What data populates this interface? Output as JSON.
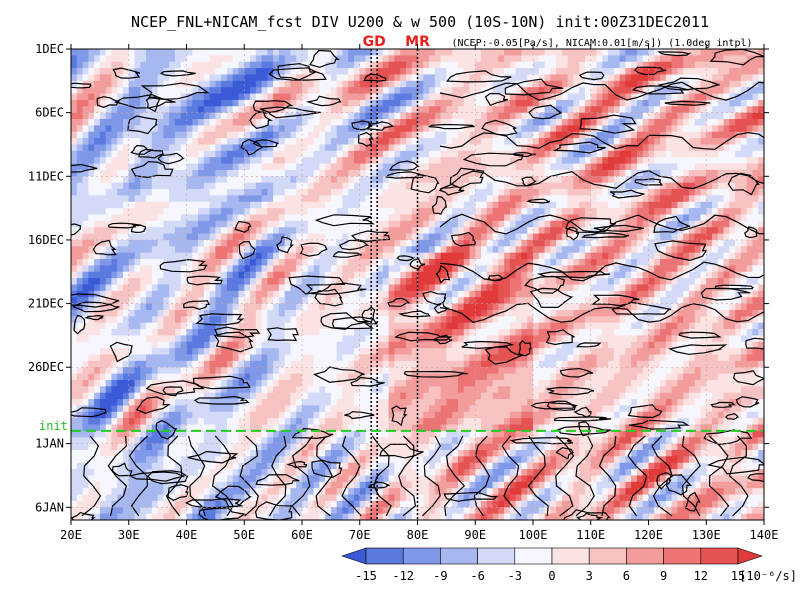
{
  "chart_data": {
    "type": "heatmap",
    "title": "NCEP_FNL+NICAM_fcst DIV U200 & w 500 (10S-10N) init:00Z31DEC2011",
    "subtitle": "(NCEP:-0.05[Pa/s], NICAM:0.01[m/s]) (1.0deg intpl)",
    "x_axis": {
      "unit": "longitude_deg_east",
      "range": [
        20,
        140
      ],
      "ticks": [
        20,
        30,
        40,
        50,
        60,
        70,
        80,
        90,
        100,
        110,
        120,
        130,
        140
      ],
      "tick_labels": [
        "20E",
        "30E",
        "40E",
        "50E",
        "60E",
        "70E",
        "80E",
        "90E",
        "100E",
        "110E",
        "120E",
        "130E",
        "140E"
      ]
    },
    "y_axis": {
      "unit": "date",
      "range": [
        "2011-12-01",
        "2012-01-07"
      ],
      "ticks": [
        "2011-12-01",
        "2011-12-06",
        "2011-12-11",
        "2011-12-16",
        "2011-12-21",
        "2011-12-26",
        "2012-01-01",
        "2012-01-06"
      ],
      "tick_labels": [
        "1DEC",
        "6DEC",
        "11DEC",
        "16DEC",
        "21DEC",
        "26DEC",
        "1JAN",
        "6JAN"
      ],
      "direction": "time increases downward"
    },
    "init_line": {
      "label": "init",
      "date": "2011-12-31",
      "color": "#22cc22"
    },
    "markers": [
      {
        "label": "GD",
        "lon": 72.5,
        "color": "#e8201c"
      },
      {
        "label": "MR",
        "lon": 80,
        "color": "#e8201c"
      }
    ],
    "colorbar": {
      "levels": [
        -15,
        -12,
        -9,
        -6,
        -3,
        0,
        3,
        6,
        9,
        12,
        15
      ],
      "level_labels": [
        "-15",
        "-12",
        "-9",
        "-6",
        "-3",
        "0",
        "3",
        "6",
        "9",
        "12",
        "15"
      ],
      "colors": [
        "#3a5ad8",
        "#5a7ae0",
        "#7f98e8",
        "#a7b8f0",
        "#d2daf8",
        "#f6f6ff",
        "#fbe3e3",
        "#f7c2c2",
        "#f29c9c",
        "#ec7474",
        "#e45252",
        "#e03a3a"
      ],
      "unit": "[10⁻⁶/s]"
    },
    "grid": true,
    "legend": "bottom colorbar"
  }
}
